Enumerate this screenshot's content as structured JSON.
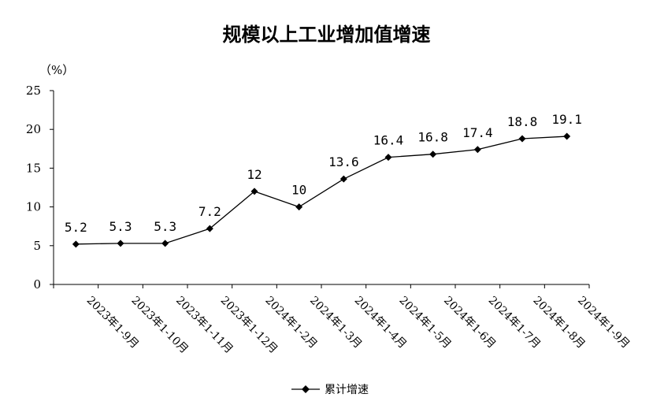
{
  "chart_data": {
    "type": "line",
    "title": "规模以上工业增加值增速",
    "unit_label": "（%）",
    "xlabel": "",
    "ylabel": "",
    "ylim": [
      0,
      25
    ],
    "yticks": [
      "0",
      "5",
      "10",
      "15",
      "20",
      "25"
    ],
    "categories": [
      "2023年1-9月",
      "2023年1-10月",
      "2023年1-11月",
      "2023年1-12月",
      "2024年1-2月",
      "2024年1-3月",
      "2024年1-4月",
      "2024年1-5月",
      "2024年1-6月",
      "2024年1-7月",
      "2024年1-8月",
      "2024年1-9月"
    ],
    "series": [
      {
        "name": "累计增速",
        "values": [
          5.2,
          5.3,
          5.3,
          7.2,
          12,
          10,
          13.6,
          16.4,
          16.8,
          17.4,
          18.8,
          19.1
        ],
        "labels": [
          "5.2",
          "5.3",
          "5.3",
          "7.2",
          "12",
          "10",
          "13.6",
          "16.4",
          "16.8",
          "17.4",
          "18.8",
          "19.1"
        ],
        "color": "#000000",
        "marker": "diamond"
      }
    ],
    "grid": false,
    "legend_position": "bottom"
  }
}
